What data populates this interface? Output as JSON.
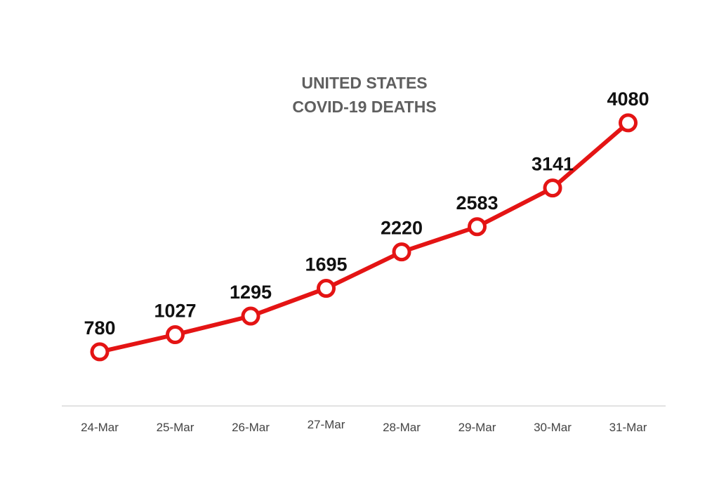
{
  "chart_data": {
    "type": "line",
    "title": [
      "UNITED STATES",
      "COVID-19 DEATHS"
    ],
    "categories": [
      "24-Mar",
      "25-Mar",
      "26-Mar",
      "27-Mar",
      "28-Mar",
      "29-Mar",
      "30-Mar",
      "31-Mar"
    ],
    "series": [
      {
        "values": [
          780,
          1027,
          1295,
          1695,
          2220,
          2583,
          3141,
          4080
        ],
        "labels": [
          "780",
          "1027",
          "1295",
          "1695",
          "2220",
          "2583",
          "3141",
          "4080"
        ],
        "color": "#e41414"
      }
    ],
    "xlabel": "",
    "ylabel": "",
    "ylim": [
      0,
      4600
    ],
    "grid": false,
    "legend": "none",
    "axis_color": "#d9d9d9"
  }
}
